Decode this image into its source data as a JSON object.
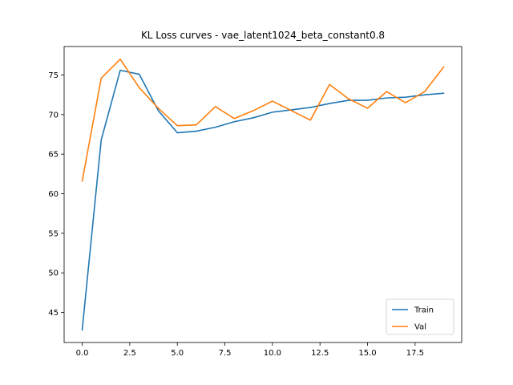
{
  "chart_data": {
    "type": "line",
    "title": "KL Loss curves - vae_latent1024_beta_constant0.8",
    "xlabel": "",
    "ylabel": "",
    "x": [
      0,
      1,
      2,
      3,
      4,
      5,
      6,
      7,
      8,
      9,
      10,
      11,
      12,
      13,
      14,
      15,
      16,
      17,
      18,
      19
    ],
    "xlim": [
      -0.95,
      19.95
    ],
    "ylim": [
      41.2,
      78.6
    ],
    "xticks": [
      0,
      2.5,
      5,
      7.5,
      10,
      12.5,
      15,
      17.5
    ],
    "xtick_labels": [
      "0.0",
      "2.5",
      "5.0",
      "7.5",
      "10.0",
      "12.5",
      "15.0",
      "17.5"
    ],
    "yticks": [
      45,
      50,
      55,
      60,
      65,
      70,
      75
    ],
    "ytick_labels": [
      "45",
      "50",
      "55",
      "60",
      "65",
      "70",
      "75"
    ],
    "grid": false,
    "legend_position": "lower-right",
    "series": [
      {
        "name": "Train",
        "color": "#1f77b4",
        "values": [
          42.8,
          66.8,
          75.6,
          75.1,
          70.5,
          67.7,
          67.9,
          68.4,
          69.1,
          69.6,
          70.3,
          70.6,
          70.9,
          71.4,
          71.8,
          71.8,
          72.1,
          72.2,
          72.5,
          72.7
        ]
      },
      {
        "name": "Val",
        "color": "#ff7f0e",
        "values": [
          61.6,
          74.6,
          77.0,
          73.4,
          70.8,
          68.6,
          68.7,
          71.0,
          69.5,
          70.5,
          71.7,
          70.5,
          69.3,
          73.8,
          72.0,
          70.8,
          72.9,
          71.5,
          72.9,
          76.0
        ]
      }
    ]
  }
}
